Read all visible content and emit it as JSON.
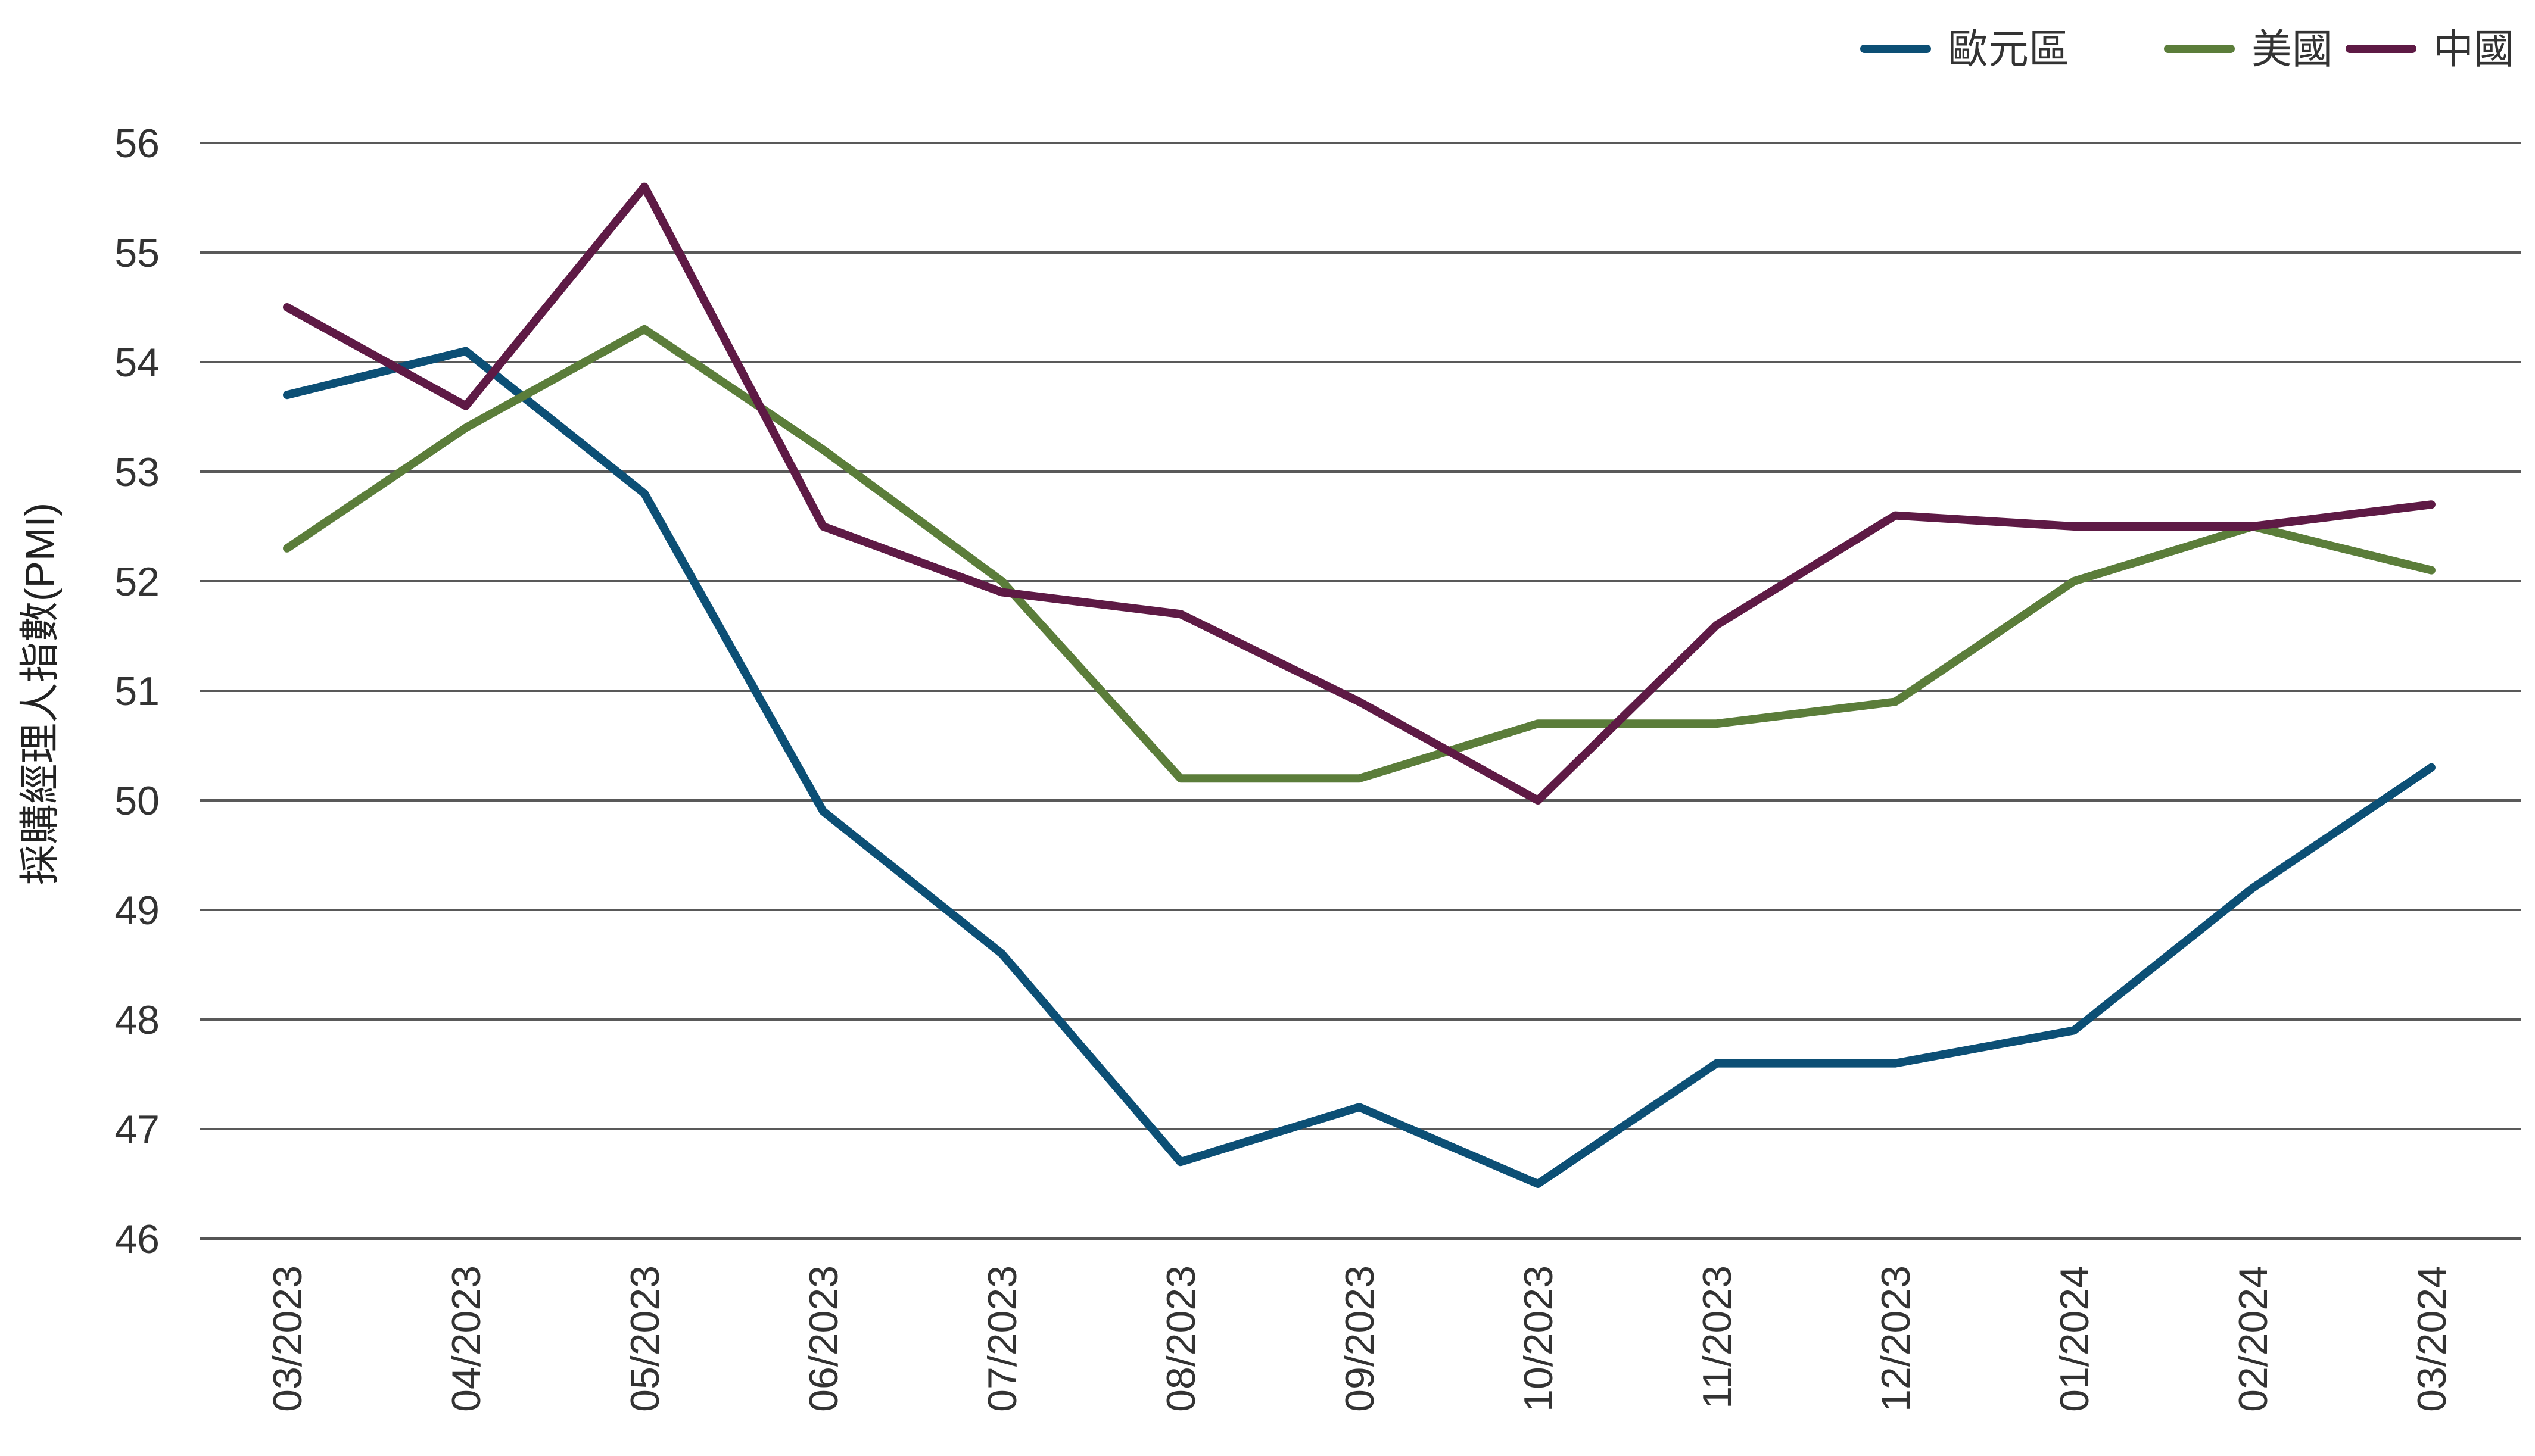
{
  "chart_data": {
    "type": "line",
    "title": "",
    "xlabel": "",
    "ylabel": "採購經理人指數(PMI)",
    "ylim": [
      46,
      56
    ],
    "yticks": [
      46,
      47,
      48,
      49,
      50,
      51,
      52,
      53,
      54,
      55,
      56
    ],
    "grid": true,
    "legend_position": "top-right",
    "categories": [
      "03/2023",
      "04/2023",
      "05/2023",
      "06/2023",
      "07/2023",
      "08/2023",
      "09/2023",
      "10/2023",
      "11/2023",
      "12/2023",
      "01/2024",
      "02/2024",
      "03/2024"
    ],
    "series": [
      {
        "name": "歐元區",
        "color": "#0c4f75",
        "values": [
          53.7,
          54.1,
          52.8,
          49.9,
          48.6,
          46.7,
          47.2,
          46.5,
          47.6,
          47.6,
          47.9,
          49.2,
          50.3
        ]
      },
      {
        "name": "美國",
        "color": "#5b7d3a",
        "values": [
          52.3,
          53.4,
          54.3,
          53.2,
          52.0,
          50.2,
          50.2,
          50.7,
          50.7,
          50.9,
          52.0,
          52.5,
          52.1
        ]
      },
      {
        "name": "中國",
        "color": "#5e1a45",
        "values": [
          54.5,
          53.6,
          55.6,
          52.5,
          51.9,
          51.7,
          50.9,
          50.0,
          51.6,
          52.6,
          52.5,
          52.5,
          52.7
        ]
      }
    ]
  }
}
